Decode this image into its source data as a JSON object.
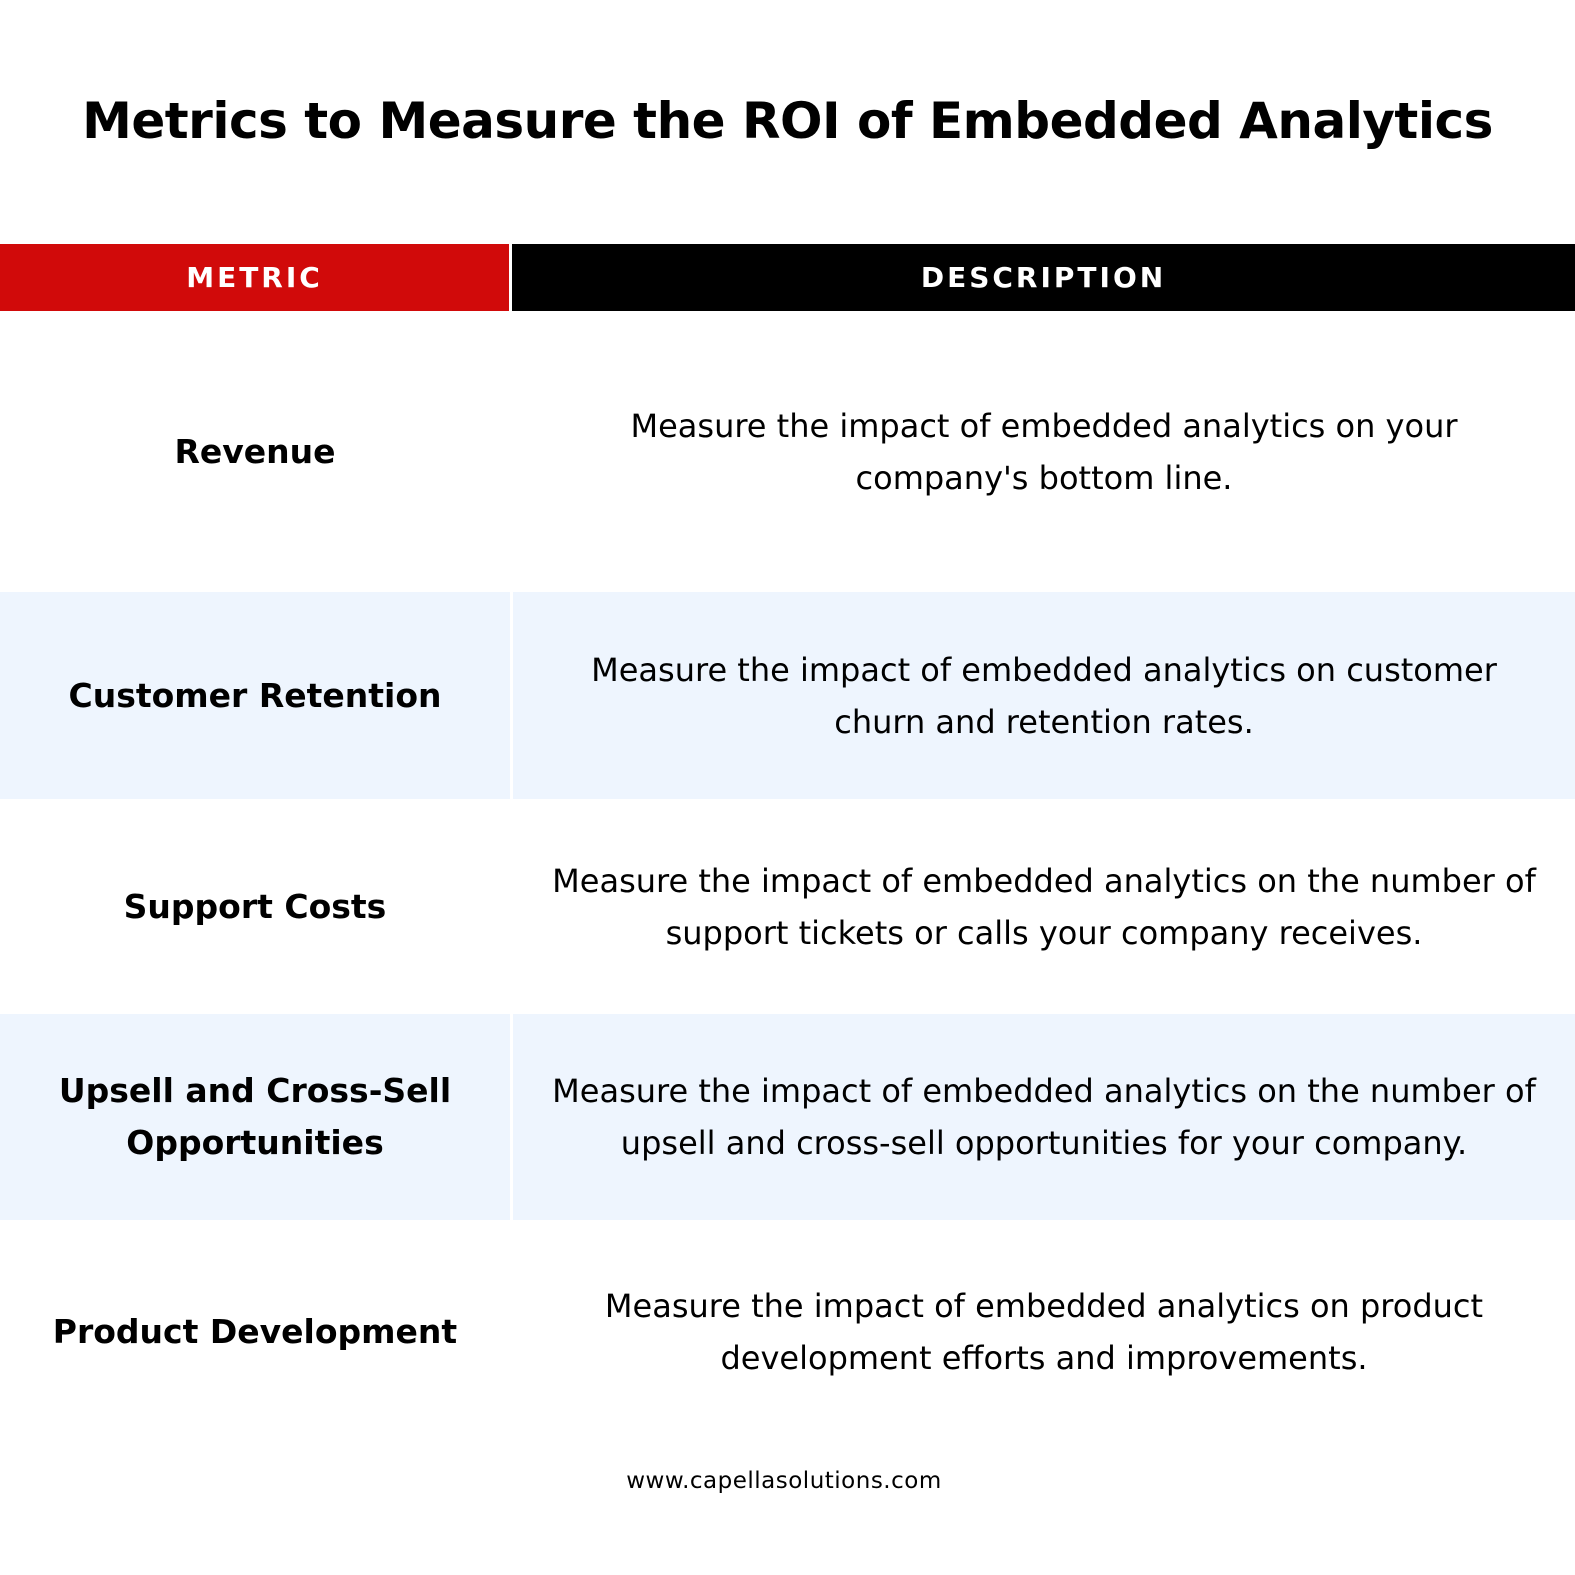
{
  "title": "Metrics to Measure the ROI of Embedded Analytics",
  "table": {
    "headers": {
      "metric": "METRIC",
      "description": "DESCRIPTION"
    },
    "rows": [
      {
        "metric": "Revenue",
        "description": "Measure the impact of embedded analytics on your company's bottom line."
      },
      {
        "metric": "Customer Retention",
        "description": "Measure the impact of embedded analytics on customer churn and retention rates."
      },
      {
        "metric": "Support Costs",
        "description": "Measure the impact of embedded analytics on the number of support tickets or calls your company receives."
      },
      {
        "metric": "Upsell and Cross-Sell Opportunities",
        "description": "Measure the impact of embedded analytics on the number of upsell and cross-sell opportunities for your company."
      },
      {
        "metric": "Product Development",
        "description": "Measure the impact of embedded analytics on product development efforts and improvements."
      }
    ]
  },
  "footer": {
    "website": "www.capellasolutions.com"
  },
  "colors": {
    "metric_header": "#d10a0a",
    "description_header": "#000000",
    "alt_row": "#eef5fe"
  }
}
